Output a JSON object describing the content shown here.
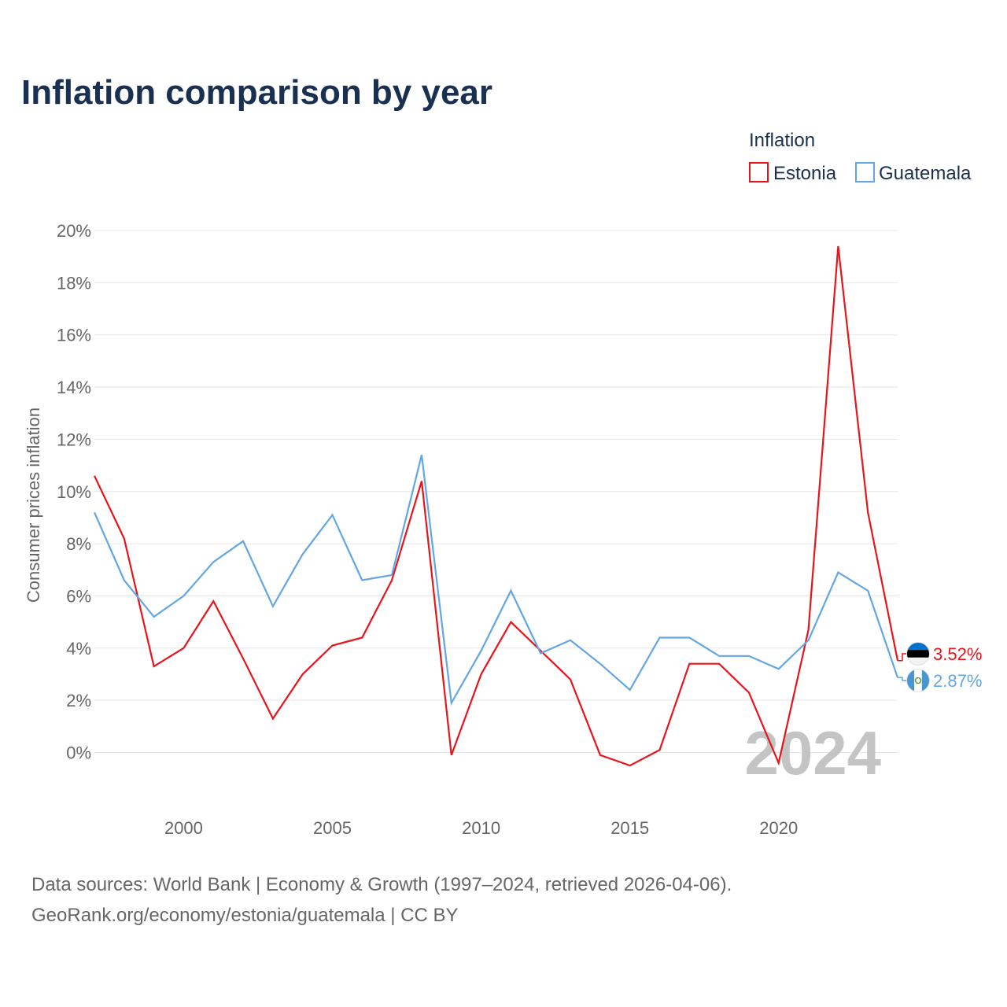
{
  "title": "Inflation comparison by year",
  "colors": {
    "title": "#1a3050",
    "estonia": "#e8141c",
    "guatemala": "#62a6e3",
    "grid": "#e6e6e6",
    "text": "#666666",
    "watermark": "#c4c4c4"
  },
  "legend": {
    "title": "Inflation",
    "items": [
      {
        "label": "Estonia",
        "color": "#e8141c"
      },
      {
        "label": "Guatemala",
        "color": "#62a6e3"
      }
    ]
  },
  "watermark_year": "2024",
  "source": {
    "line1": "Data sources: World Bank | Economy & Growth (1997–2024, retrieved 2026-04-06).",
    "line2": "GeoRank.org/economy/estonia/guatemala | CC BY"
  },
  "chart_data": {
    "type": "line",
    "title": "Inflation comparison by year",
    "xlabel": "",
    "ylabel": "Consumer prices inflation",
    "xlim": [
      1997,
      2024
    ],
    "ylim": [
      -1.5,
      20
    ],
    "x_ticks": [
      2000,
      2005,
      2010,
      2015,
      2020
    ],
    "x_tick_labels": [
      "2000",
      "2005",
      "2010",
      "2015",
      "2020"
    ],
    "y_ticks": [
      0,
      2,
      4,
      6,
      8,
      10,
      12,
      14,
      16,
      18,
      20
    ],
    "y_tick_labels": [
      "0%",
      "2%",
      "4%",
      "6%",
      "8%",
      "10%",
      "12%",
      "14%",
      "16%",
      "18%",
      "20%"
    ],
    "x": [
      1997,
      1998,
      1999,
      2000,
      2001,
      2002,
      2003,
      2004,
      2005,
      2006,
      2007,
      2008,
      2009,
      2010,
      2011,
      2012,
      2013,
      2014,
      2015,
      2016,
      2017,
      2018,
      2019,
      2020,
      2021,
      2022,
      2023,
      2024
    ],
    "series": [
      {
        "name": "Estonia",
        "color": "#e8141c",
        "end_label": "3.52%",
        "flag": "estonia-flag-icon",
        "values": [
          10.6,
          8.2,
          3.3,
          4.0,
          5.8,
          3.6,
          1.3,
          3.0,
          4.1,
          4.4,
          6.6,
          10.4,
          -0.1,
          3.0,
          5.0,
          3.9,
          2.8,
          -0.1,
          -0.5,
          0.1,
          3.4,
          3.4,
          2.3,
          -0.4,
          4.7,
          19.4,
          9.2,
          3.52
        ]
      },
      {
        "name": "Guatemala",
        "color": "#62a6e3",
        "end_label": "2.87%",
        "flag": "guatemala-flag-icon",
        "values": [
          9.2,
          6.6,
          5.2,
          6.0,
          7.3,
          8.1,
          5.6,
          7.6,
          9.1,
          6.6,
          6.8,
          11.4,
          1.9,
          3.9,
          6.2,
          3.8,
          4.3,
          3.4,
          2.4,
          4.4,
          4.4,
          3.7,
          3.7,
          3.2,
          4.3,
          6.9,
          6.2,
          2.87
        ]
      }
    ],
    "legend_position": "top-right",
    "grid": true
  }
}
